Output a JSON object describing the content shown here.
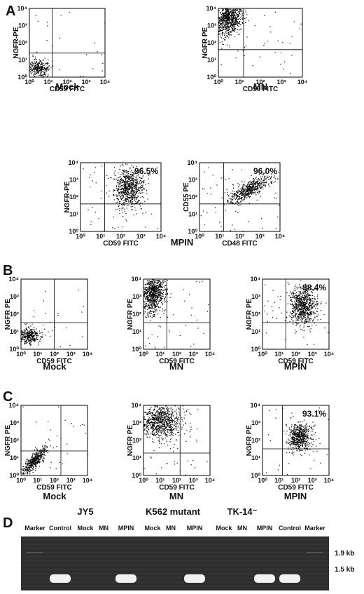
{
  "panels": [
    {
      "letter": "A",
      "plots": [
        {
          "ylabel": "NGFR-PE",
          "xlabel": "CD59 FITC"
        },
        {
          "ylabel": "NGFR PE",
          "xlabel": "CD59 FITC"
        },
        {
          "ylabel": "NGFR-PE",
          "xlabel": "CD59 FITC",
          "percent": "96.5%"
        },
        {
          "ylabel": "CD55 PE",
          "xlabel": "CD48 FITC",
          "percent": "96.0%"
        }
      ],
      "captions": [
        "Mock",
        "MN",
        "MPIN"
      ]
    },
    {
      "letter": "B",
      "plots": [
        {
          "ylabel": "NGFR PE",
          "xlabel": "CD59 FITC"
        },
        {
          "ylabel": "NGFR PE",
          "xlabel": "CD59 FITC"
        },
        {
          "ylabel": "NGFR PE",
          "xlabel": "CD59 FITC",
          "percent": "98.4%"
        }
      ],
      "captions": [
        "Mock",
        "MN",
        "MPIN"
      ]
    },
    {
      "letter": "C",
      "plots": [
        {
          "ylabel": "NGFR PE",
          "xlabel": "CD59 FITC"
        },
        {
          "ylabel": "NGFR PE",
          "xlabel": "CD59 FITC"
        },
        {
          "ylabel": "NGFR PE",
          "xlabel": "CD59 FITC",
          "percent": "93.1%"
        }
      ],
      "captions": [
        "Mock",
        "MN",
        "MPIN"
      ]
    }
  ],
  "ticks": [
    "10⁰",
    "10¹",
    "10²",
    "10³",
    "10⁴"
  ],
  "gel": {
    "letter": "D",
    "groups": [
      "JY5",
      "K562 mutant",
      "TK-14⁻"
    ],
    "lanes": [
      "Marker",
      "Control",
      "Mock",
      "MN",
      "MPIN",
      "Mock",
      "MN",
      "MPIN",
      "Mock",
      "MN",
      "MPIN",
      "Control",
      "Marker"
    ],
    "sizes": [
      "1.9 kb",
      "1.5 kb"
    ]
  }
}
